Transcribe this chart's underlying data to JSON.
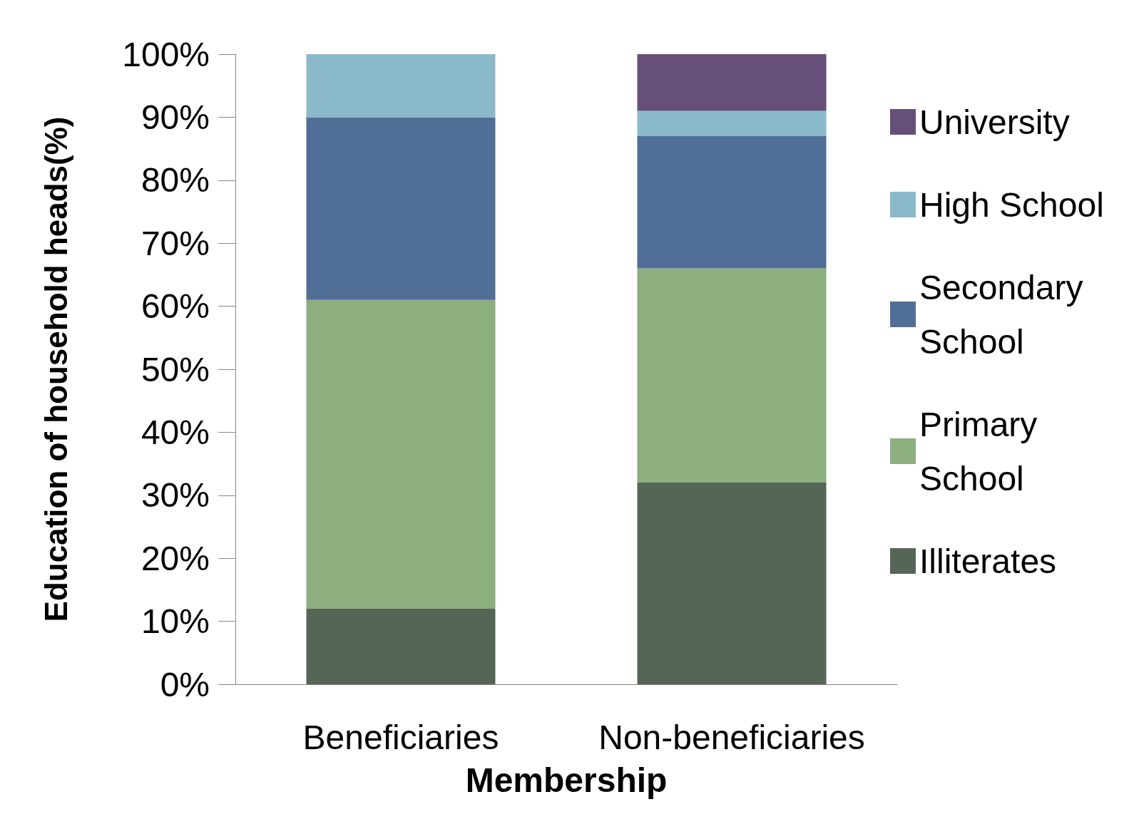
{
  "chart_data": {
    "type": "bar",
    "stacked": true,
    "xlabel": "Membership",
    "ylabel": "Education of household heads(%)",
    "categories": [
      "Beneficiaries",
      "Non-beneficiaries"
    ],
    "series": [
      {
        "name": "Illiterates",
        "color": "#566656",
        "values": [
          12,
          32
        ]
      },
      {
        "name": "Primary School",
        "color": "#8daf80",
        "values": [
          49,
          34
        ]
      },
      {
        "name": "Secondary School",
        "color": "#506e96",
        "values": [
          29,
          21
        ]
      },
      {
        "name": "High School",
        "color": "#8ab9c9",
        "values": [
          10,
          4
        ]
      },
      {
        "name": "University",
        "color": "#664f78",
        "values": [
          0,
          9
        ]
      }
    ],
    "ylim": [
      0,
      100
    ],
    "yticks": [
      {
        "value": 0,
        "label": "0%"
      },
      {
        "value": 10,
        "label": "10%"
      },
      {
        "value": 20,
        "label": "20%"
      },
      {
        "value": 30,
        "label": "30%"
      },
      {
        "value": 40,
        "label": "40%"
      },
      {
        "value": 50,
        "label": "50%"
      },
      {
        "value": 60,
        "label": "60%"
      },
      {
        "value": 70,
        "label": "70%"
      },
      {
        "value": 80,
        "label": "80%"
      },
      {
        "value": 90,
        "label": "90%"
      },
      {
        "value": 100,
        "label": "100%"
      }
    ],
    "grid": false,
    "legend": "right"
  }
}
